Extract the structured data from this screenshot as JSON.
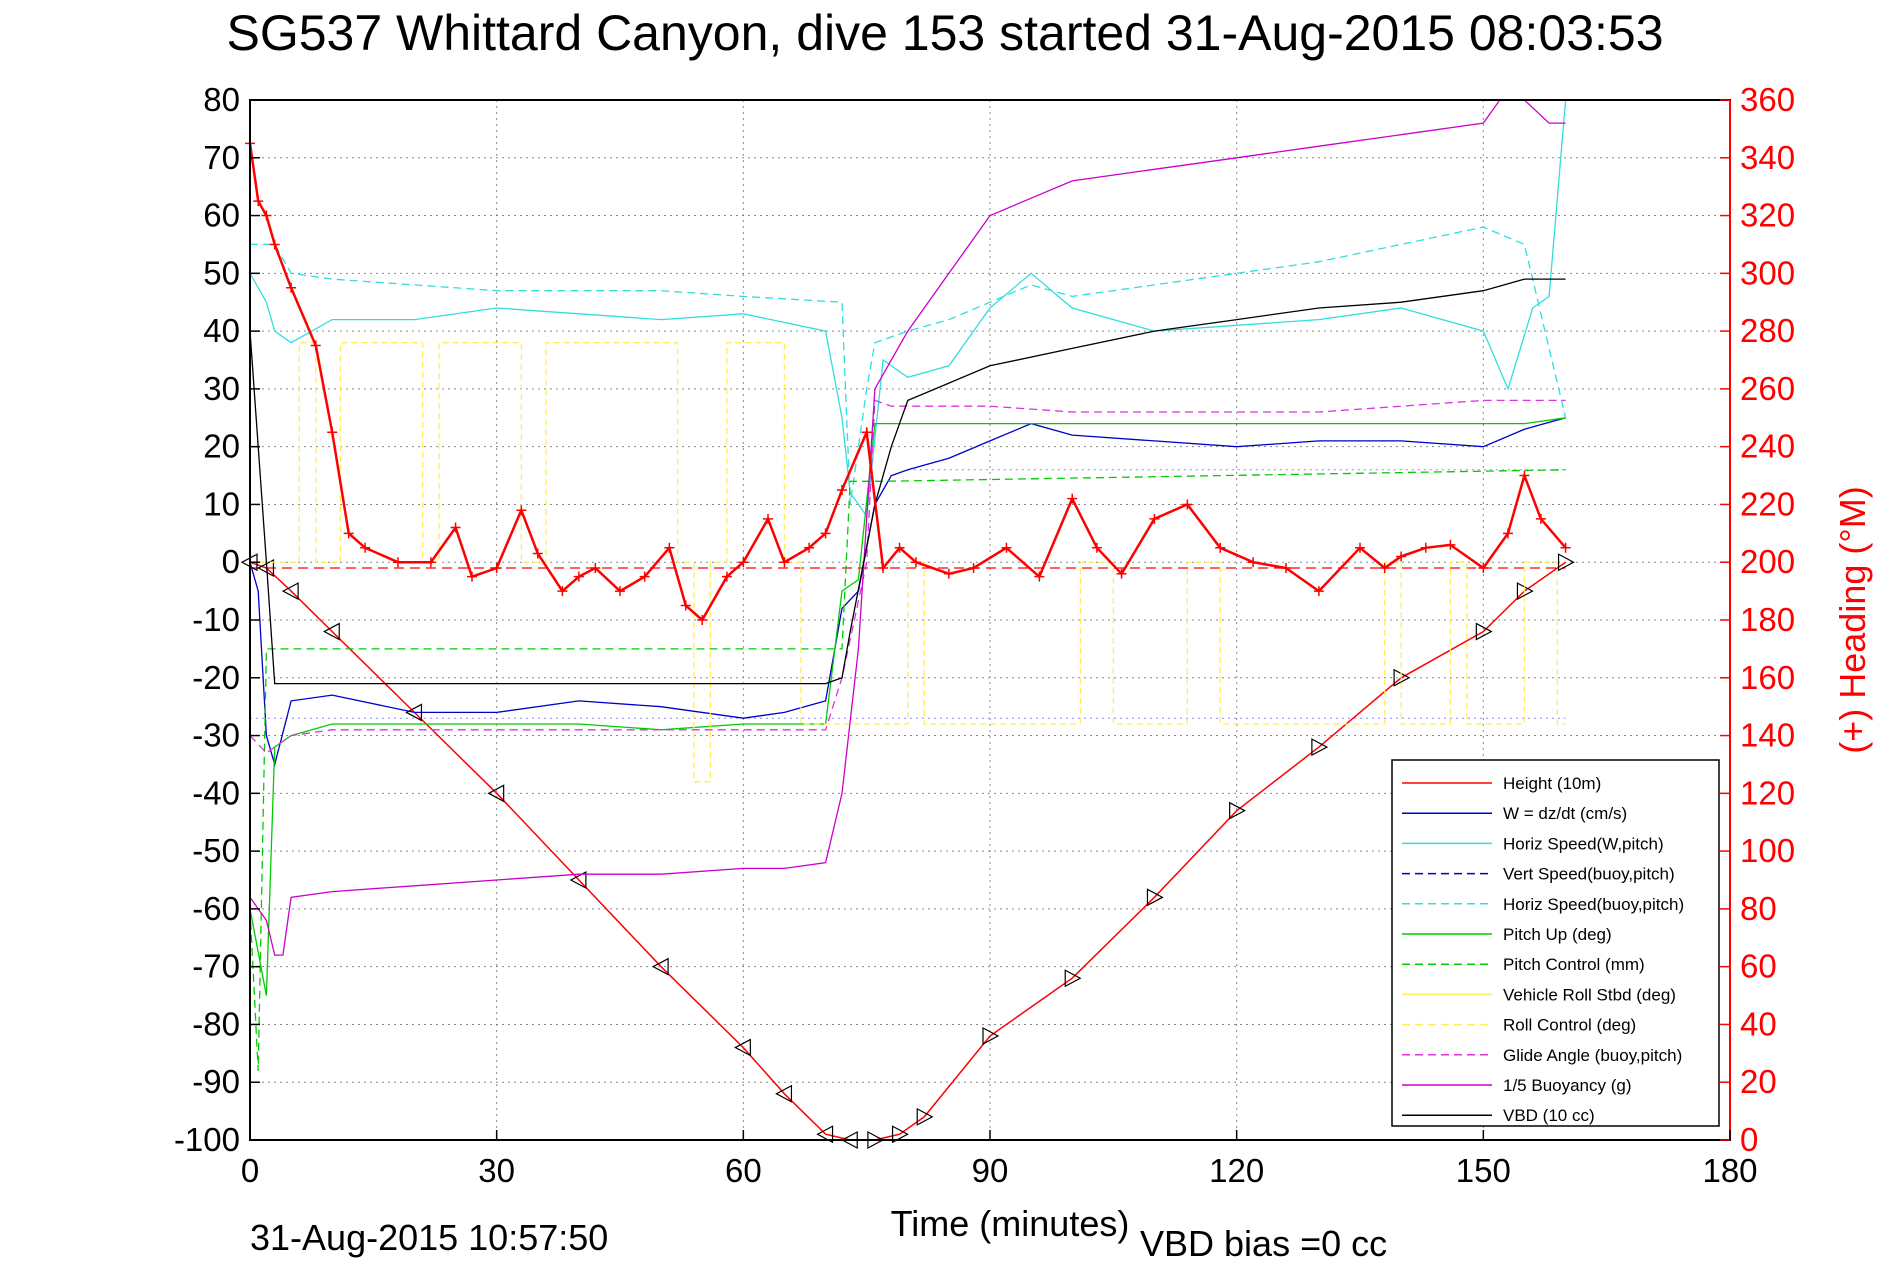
{
  "chart_data": {
    "type": "line",
    "title": "SG537 Whittard Canyon, dive 153 started 31-Aug-2015 08:03:53",
    "xlabel": "Time (minutes)",
    "ylabel_right": "(+) Heading (°M)",
    "footer_time": "31-Aug-2015 10:57:50",
    "footer_vbd": "VBD bias =0 cc",
    "xlim": [
      0,
      180
    ],
    "ylim": [
      -100,
      80
    ],
    "ylim_right": [
      0,
      360
    ],
    "grid": true,
    "legend_position": "bottom-right",
    "x_ticks": [
      "0",
      "30",
      "60",
      "90",
      "120",
      "150",
      "180"
    ],
    "y_ticks": [
      "80",
      "70",
      "60",
      "50",
      "40",
      "30",
      "20",
      "10",
      "0",
      "-10",
      "-20",
      "-30",
      "-40",
      "-50",
      "-60",
      "-70",
      "-80",
      "-90",
      "-100"
    ],
    "y_right_ticks": [
      "360",
      "340",
      "320",
      "300",
      "280",
      "260",
      "240",
      "220",
      "200",
      "180",
      "160",
      "140",
      "120",
      "100",
      "80",
      "60",
      "40",
      "20",
      "0"
    ],
    "legend": [
      "Height (10m)",
      "W = dz/dt (cm/s)",
      "Horiz Speed(W,pitch)",
      "Vert Speed(buoy,pitch)",
      "Horiz Speed(buoy,pitch)",
      "Pitch Up (deg)",
      "Pitch Control (mm)",
      "Vehicle Roll Stbd (deg)",
      "Roll Control (deg)",
      "Glide Angle (buoy,pitch)",
      "1/5 Buoyancy (g)",
      "VBD (10 cc)"
    ],
    "colors": {
      "height": "#ff0000",
      "w": "#0000cc",
      "horiz_speed": "#33dddd",
      "pitch": "#00cc00",
      "roll": "#ffee55",
      "glide": "#dd33dd",
      "buoyancy": "#cc00cc",
      "vbd": "#000000",
      "heading": "#ff0000"
    },
    "series": [
      {
        "name": "Height (10m)",
        "x": [
          0,
          2,
          5,
          10,
          20,
          30,
          40,
          50,
          60,
          65,
          70,
          73,
          76,
          79,
          82,
          90,
          100,
          110,
          120,
          130,
          140,
          150,
          155,
          160
        ],
        "y": [
          0,
          -1,
          -5,
          -12,
          -26,
          -40,
          -55,
          -70,
          -84,
          -92,
          -99,
          -100,
          -100,
          -99,
          -96,
          -82,
          -72,
          -58,
          -43,
          -32,
          -20,
          -12,
          -5,
          0
        ]
      },
      {
        "name": "W = dz/dt (cm/s)",
        "x": [
          0,
          1,
          2,
          3,
          5,
          10,
          20,
          30,
          40,
          50,
          60,
          65,
          70,
          72,
          74,
          76,
          78,
          80,
          85,
          90,
          95,
          100,
          110,
          120,
          130,
          140,
          150,
          155,
          160
        ],
        "y": [
          0,
          -5,
          -30,
          -35,
          -24,
          -23,
          -26,
          -26,
          -24,
          -25,
          -27,
          -26,
          -24,
          -8,
          -5,
          10,
          15,
          16,
          18,
          21,
          24,
          22,
          21,
          20,
          21,
          21,
          20,
          23,
          25
        ]
      },
      {
        "name": "Horiz Speed(W,pitch)",
        "x": [
          0,
          2,
          3,
          5,
          10,
          20,
          30,
          40,
          50,
          60,
          70,
          72,
          73,
          75,
          77,
          80,
          85,
          90,
          95,
          100,
          110,
          120,
          130,
          140,
          150,
          153,
          156,
          158,
          160
        ],
        "y": [
          50,
          45,
          40,
          38,
          42,
          42,
          44,
          43,
          42,
          43,
          40,
          25,
          12,
          8,
          35,
          32,
          34,
          44,
          50,
          44,
          40,
          41,
          42,
          44,
          40,
          30,
          44,
          46,
          80
        ]
      },
      {
        "name": "Horiz Speed(buoy,pitch)",
        "x": [
          0,
          3,
          5,
          10,
          20,
          30,
          40,
          50,
          60,
          72,
          73,
          75,
          76,
          80,
          85,
          90,
          95,
          100,
          110,
          120,
          130,
          140,
          150,
          155,
          160
        ],
        "y": [
          55,
          55,
          50,
          49,
          48,
          47,
          47,
          47,
          46,
          45,
          10,
          30,
          38,
          40,
          42,
          45,
          48,
          46,
          48,
          50,
          52,
          55,
          58,
          55,
          25
        ]
      },
      {
        "name": "Pitch Up (deg)",
        "x": [
          0,
          2,
          3,
          5,
          10,
          20,
          30,
          40,
          50,
          60,
          70,
          72,
          74,
          76,
          78,
          80,
          90,
          100,
          110,
          120,
          130,
          140,
          150,
          155,
          160
        ],
        "y": [
          -60,
          -75,
          -32,
          -30,
          -28,
          -28,
          -28,
          -28,
          -29,
          -28,
          -28,
          -5,
          -3,
          24,
          24,
          24,
          24,
          24,
          24,
          24,
          24,
          24,
          24,
          24,
          25
        ]
      },
      {
        "name": "Pitch Control (mm)",
        "x": [
          0,
          1,
          2,
          3,
          5,
          72,
          73,
          76,
          77,
          160,
          160
        ],
        "y": [
          -60,
          -88,
          -15,
          -15,
          -15,
          -15,
          14,
          14,
          14,
          16,
          16
        ]
      },
      {
        "name": "Roll Control (deg)",
        "x": [
          0,
          6,
          6,
          8,
          8,
          11,
          11,
          21,
          21,
          23,
          23,
          33,
          33,
          36,
          36,
          52,
          52,
          54,
          54,
          56,
          56,
          58,
          58,
          65,
          65,
          67,
          67,
          80,
          80,
          82,
          82,
          101,
          101,
          105,
          105,
          114,
          114,
          118,
          118,
          138,
          138,
          140,
          140,
          146,
          146,
          148,
          148,
          155,
          155,
          159,
          159,
          160
        ],
        "y": [
          0,
          0,
          38,
          38,
          0,
          0,
          38,
          38,
          0,
          0,
          38,
          38,
          0,
          0,
          38,
          38,
          0,
          0,
          -38,
          -38,
          0,
          0,
          38,
          38,
          0,
          0,
          -28,
          -28,
          0,
          0,
          -28,
          -28,
          0,
          0,
          -28,
          -28,
          0,
          0,
          -28,
          -28,
          0,
          0,
          -28,
          -28,
          0,
          0,
          -28,
          -28,
          0,
          0,
          -28,
          -28
        ]
      },
      {
        "name": "Glide Angle (buoy,pitch)",
        "x": [
          0,
          2,
          3,
          5,
          10,
          20,
          30,
          40,
          50,
          60,
          70,
          72,
          75,
          76,
          78,
          80,
          90,
          100,
          110,
          120,
          130,
          140,
          150,
          155,
          160
        ],
        "y": [
          -30,
          -33,
          -32,
          -30,
          -29,
          -29,
          -29,
          -29,
          -29,
          -29,
          -29,
          -20,
          0,
          28,
          27,
          27,
          27,
          26,
          26,
          26,
          26,
          27,
          28,
          28,
          28
        ]
      },
      {
        "name": "1/5 Buoyancy (g)",
        "x": [
          0,
          2,
          3,
          4,
          5,
          10,
          20,
          30,
          40,
          50,
          60,
          65,
          70,
          72,
          74,
          76,
          78,
          80,
          85,
          90,
          95,
          100,
          110,
          120,
          130,
          140,
          150,
          152,
          155,
          158,
          160
        ],
        "y": [
          -58,
          -62,
          -68,
          -68,
          -58,
          -57,
          -56,
          -55,
          -54,
          -54,
          -53,
          -53,
          -52,
          -40,
          -15,
          30,
          35,
          40,
          50,
          60,
          63,
          66,
          68,
          70,
          72,
          74,
          76,
          80,
          80,
          76,
          76
        ]
      },
      {
        "name": "VBD (10 cc)",
        "x": [
          0,
          2,
          3,
          5,
          20,
          40,
          60,
          70,
          72,
          73,
          76,
          78,
          80,
          85,
          90,
          100,
          110,
          120,
          130,
          140,
          150,
          155,
          160
        ],
        "y": [
          40,
          0,
          -21,
          -21,
          -21,
          -21,
          -21,
          -21,
          -20,
          -12,
          10,
          20,
          28,
          31,
          34,
          37,
          40,
          42,
          44,
          45,
          47,
          49,
          49
        ]
      },
      {
        "name": "Heading",
        "axis": "right",
        "x": [
          0,
          1,
          2,
          3,
          5,
          8,
          10,
          12,
          14,
          18,
          22,
          25,
          27,
          30,
          33,
          35,
          38,
          40,
          42,
          45,
          48,
          51,
          53,
          55,
          58,
          60,
          63,
          65,
          68,
          70,
          72,
          75,
          77,
          79,
          81,
          85,
          88,
          92,
          96,
          100,
          103,
          106,
          110,
          114,
          118,
          122,
          126,
          130,
          135,
          138,
          140,
          143,
          146,
          150,
          153,
          155,
          157,
          160
        ],
        "y": [
          345,
          325,
          320,
          310,
          295,
          275,
          245,
          210,
          205,
          200,
          200,
          212,
          195,
          198,
          218,
          203,
          190,
          195,
          198,
          190,
          195,
          205,
          185,
          180,
          195,
          200,
          215,
          200,
          205,
          210,
          225,
          245,
          198,
          205,
          200,
          196,
          198,
          205,
          195,
          222,
          205,
          196,
          215,
          220,
          205,
          200,
          198,
          190,
          205,
          198,
          202,
          205,
          206,
          198,
          210,
          230,
          215,
          205
        ]
      }
    ]
  }
}
